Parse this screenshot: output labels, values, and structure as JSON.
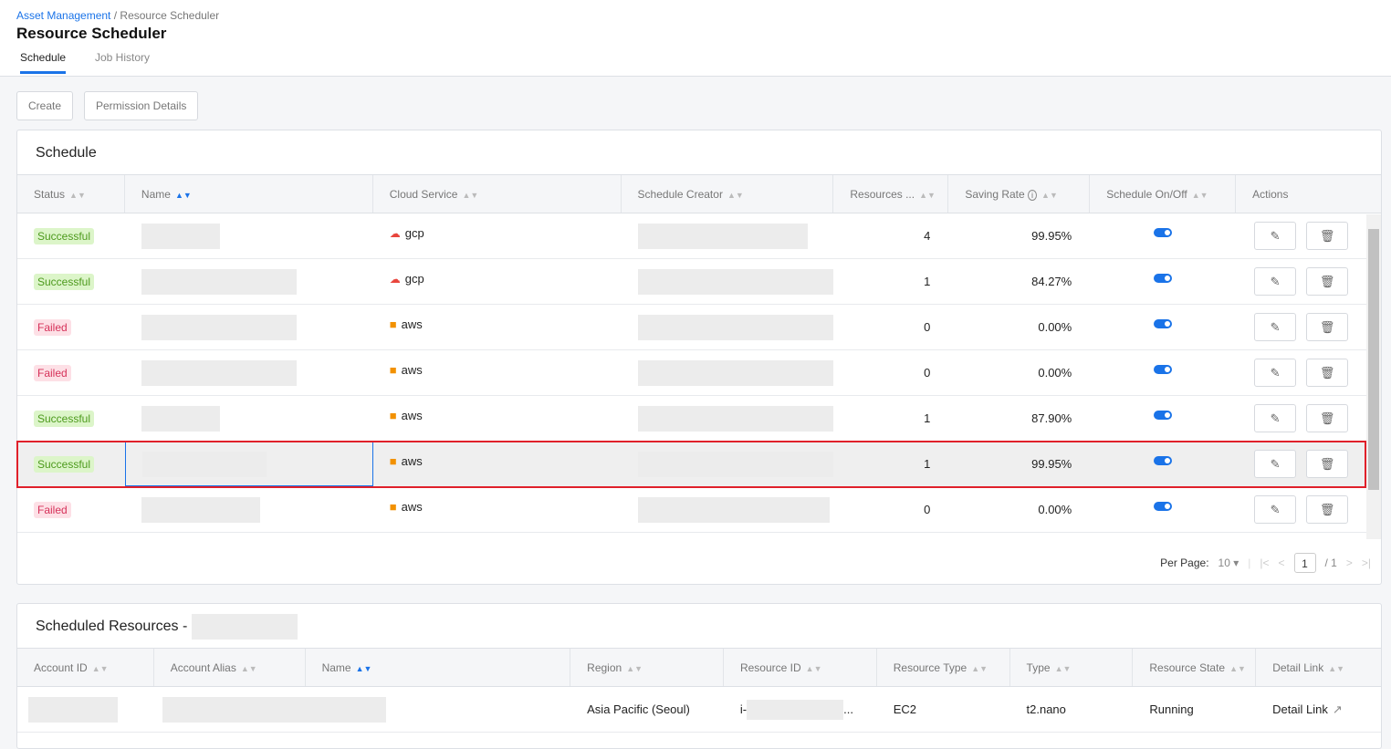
{
  "breadcrumb": {
    "parent": "Asset Management",
    "current": "Resource Scheduler"
  },
  "title": "Resource Scheduler",
  "tabs": [
    {
      "label": "Schedule"
    },
    {
      "label": "Job History"
    }
  ],
  "toolbar": {
    "create": "Create",
    "permission": "Permission Details"
  },
  "schedule": {
    "title": "Schedule",
    "columns": [
      "Status",
      "Name",
      "Cloud Service",
      "Schedule Creator",
      "Resources ...",
      "Saving Rate",
      "Schedule On/Off",
      "Actions"
    ],
    "rows": [
      {
        "status": "Successful",
        "cloud": "gcp",
        "resources": "4",
        "saving": "99.95%",
        "on": true
      },
      {
        "status": "Successful",
        "cloud": "gcp",
        "resources": "1",
        "saving": "84.27%",
        "on": true
      },
      {
        "status": "Failed",
        "cloud": "aws",
        "resources": "0",
        "saving": "0.00%",
        "on": true
      },
      {
        "status": "Failed",
        "cloud": "aws",
        "resources": "0",
        "saving": "0.00%",
        "on": true
      },
      {
        "status": "Successful",
        "cloud": "aws",
        "resources": "1",
        "saving": "87.90%",
        "on": true
      },
      {
        "status": "Successful",
        "cloud": "aws",
        "resources": "1",
        "saving": "99.95%",
        "on": true
      },
      {
        "status": "Failed",
        "cloud": "aws",
        "resources": "0",
        "saving": "0.00%",
        "on": true
      }
    ],
    "pager": {
      "per_page_label": "Per Page:",
      "per_page": "10",
      "page": "1",
      "total": "/ 1"
    }
  },
  "resources": {
    "title": "Scheduled Resources -",
    "columns": [
      "Account ID",
      "Account Alias",
      "Name",
      "Region",
      "Resource ID",
      "Resource Type",
      "Type",
      "Resource State",
      "Detail Link"
    ],
    "rows": [
      {
        "region": "Asia Pacific (Seoul)",
        "resource_id_prefix": "i-",
        "resource_id_suffix": "...",
        "resource_type": "EC2",
        "type": "t2.nano",
        "state": "Running",
        "detail": "Detail Link"
      }
    ]
  },
  "colors": {
    "accent": "#1a73e8",
    "success": "#4d9a1d",
    "failed": "#d6325a",
    "highlight": "#e0202a"
  }
}
